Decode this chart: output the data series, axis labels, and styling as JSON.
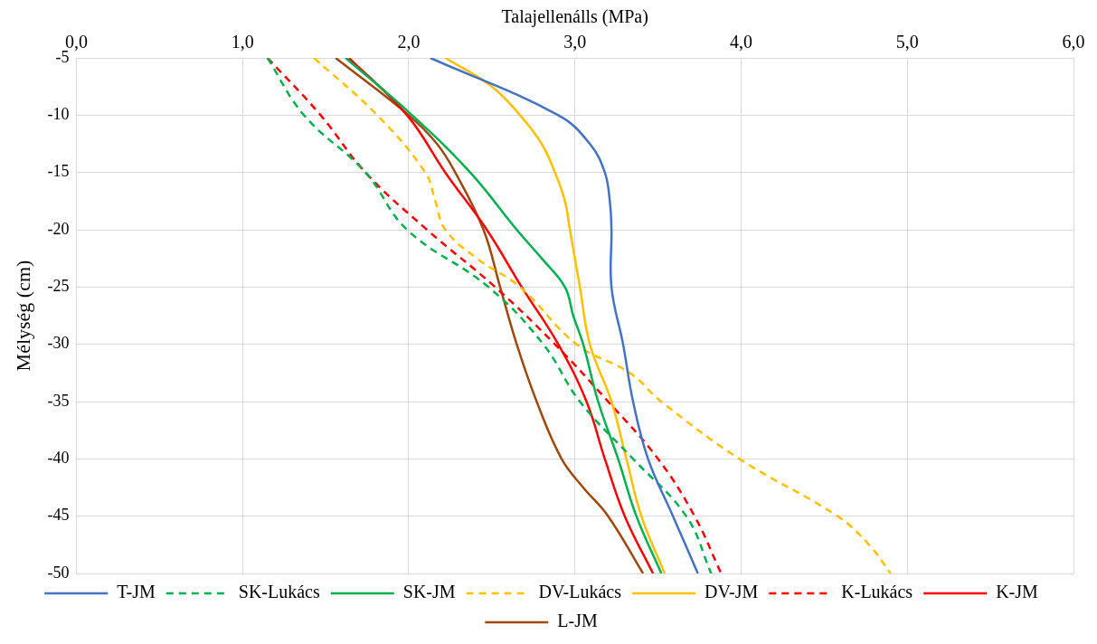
{
  "chart_data": {
    "type": "line",
    "xlabel": "Talajellenálls (MPa)",
    "ylabel": "Mélység (cm)",
    "xlim": [
      0,
      6
    ],
    "xticks": [
      {
        "value": 0,
        "label": "0,0"
      },
      {
        "value": 1,
        "label": "1,0"
      },
      {
        "value": 2,
        "label": "2,0"
      },
      {
        "value": 3,
        "label": "3,0"
      },
      {
        "value": 4,
        "label": "4,0"
      },
      {
        "value": 5,
        "label": "5,0"
      },
      {
        "value": 6,
        "label": "6,0"
      }
    ],
    "ylim": [
      -50,
      -5
    ],
    "yticks": [
      -5,
      -10,
      -15,
      -20,
      -25,
      -30,
      -35,
      -40,
      -45,
      -50
    ],
    "grid": true,
    "legend": "bottom",
    "marker": "none",
    "series": [
      {
        "name": "T-JM",
        "color": "#4472c4",
        "line_style": "solid",
        "x": [
          2.13,
          2.9,
          3.09,
          3.18,
          3.21,
          3.22,
          3.22,
          3.29,
          3.35,
          3.44,
          3.59,
          3.74
        ],
        "values": [
          -5,
          -10,
          -12.5,
          -15,
          -17.5,
          -20,
          -25,
          -30,
          -35,
          -40,
          -45,
          -50
        ]
      },
      {
        "name": "SK-Lukács",
        "color": "#00b050",
        "line_style": "dashed",
        "x": [
          1.15,
          1.37,
          1.74,
          1.99,
          2.48,
          2.81,
          3.03,
          3.35,
          3.67,
          3.82
        ],
        "values": [
          -5,
          -10,
          -15,
          -20,
          -25,
          -30,
          -35,
          -40,
          -45,
          -50
        ]
      },
      {
        "name": "SK-JM",
        "color": "#00b050",
        "line_style": "solid",
        "x": [
          1.62,
          2.02,
          2.37,
          2.65,
          2.8,
          2.94,
          2.99,
          3.05,
          3.14,
          3.26,
          3.37,
          3.52
        ],
        "values": [
          -5,
          -10,
          -15,
          -20,
          -22.5,
          -25,
          -27.5,
          -30,
          -35,
          -40,
          -45,
          -50
        ]
      },
      {
        "name": "DV-Lukács",
        "color": "#ffc000",
        "line_style": "dashed",
        "x": [
          1.43,
          1.81,
          2.1,
          2.16,
          2.22,
          2.41,
          2.67,
          3.01,
          3.33,
          3.52,
          3.99,
          4.58,
          4.77,
          4.9
        ],
        "values": [
          -5,
          -10,
          -15,
          -17.5,
          -20,
          -22.5,
          -25,
          -30,
          -32.5,
          -35,
          -40,
          -45,
          -47.5,
          -50
        ]
      },
      {
        "name": "DV-JM",
        "color": "#ffc000",
        "line_style": "solid",
        "x": [
          2.22,
          2.5,
          2.67,
          2.8,
          2.88,
          2.94,
          2.97,
          3.03,
          3.09,
          3.22,
          3.31,
          3.4,
          3.54
        ],
        "values": [
          -5,
          -7.5,
          -10,
          -12.5,
          -15,
          -17.5,
          -20,
          -25,
          -30,
          -35,
          -40,
          -45,
          -50
        ]
      },
      {
        "name": "K-Lukács",
        "color": "#ff0000",
        "line_style": "dashed",
        "x": [
          1.15,
          1.47,
          1.74,
          2.11,
          2.52,
          2.88,
          3.2,
          3.5,
          3.72,
          3.88
        ],
        "values": [
          -5,
          -10,
          -15,
          -20,
          -25,
          -30,
          -35,
          -40,
          -45,
          -50
        ]
      },
      {
        "name": "K-JM",
        "color": "#ff0000",
        "line_style": "solid",
        "x": [
          1.64,
          1.99,
          2.22,
          2.47,
          2.68,
          2.9,
          3.07,
          3.18,
          3.3,
          3.47
        ],
        "values": [
          -5,
          -10,
          -15,
          -20,
          -25,
          -30,
          -35,
          -40,
          -45,
          -50
        ]
      },
      {
        "name": "L-JM",
        "color": "#9e480e",
        "line_style": "solid",
        "x": [
          1.56,
          2.0,
          2.17,
          2.28,
          2.45,
          2.55,
          2.65,
          2.77,
          2.92,
          3.05,
          3.2,
          3.41
        ],
        "values": [
          -5,
          -10,
          -12.5,
          -15,
          -20,
          -25,
          -30,
          -35,
          -40,
          -42.5,
          -45,
          -50
        ]
      }
    ]
  }
}
